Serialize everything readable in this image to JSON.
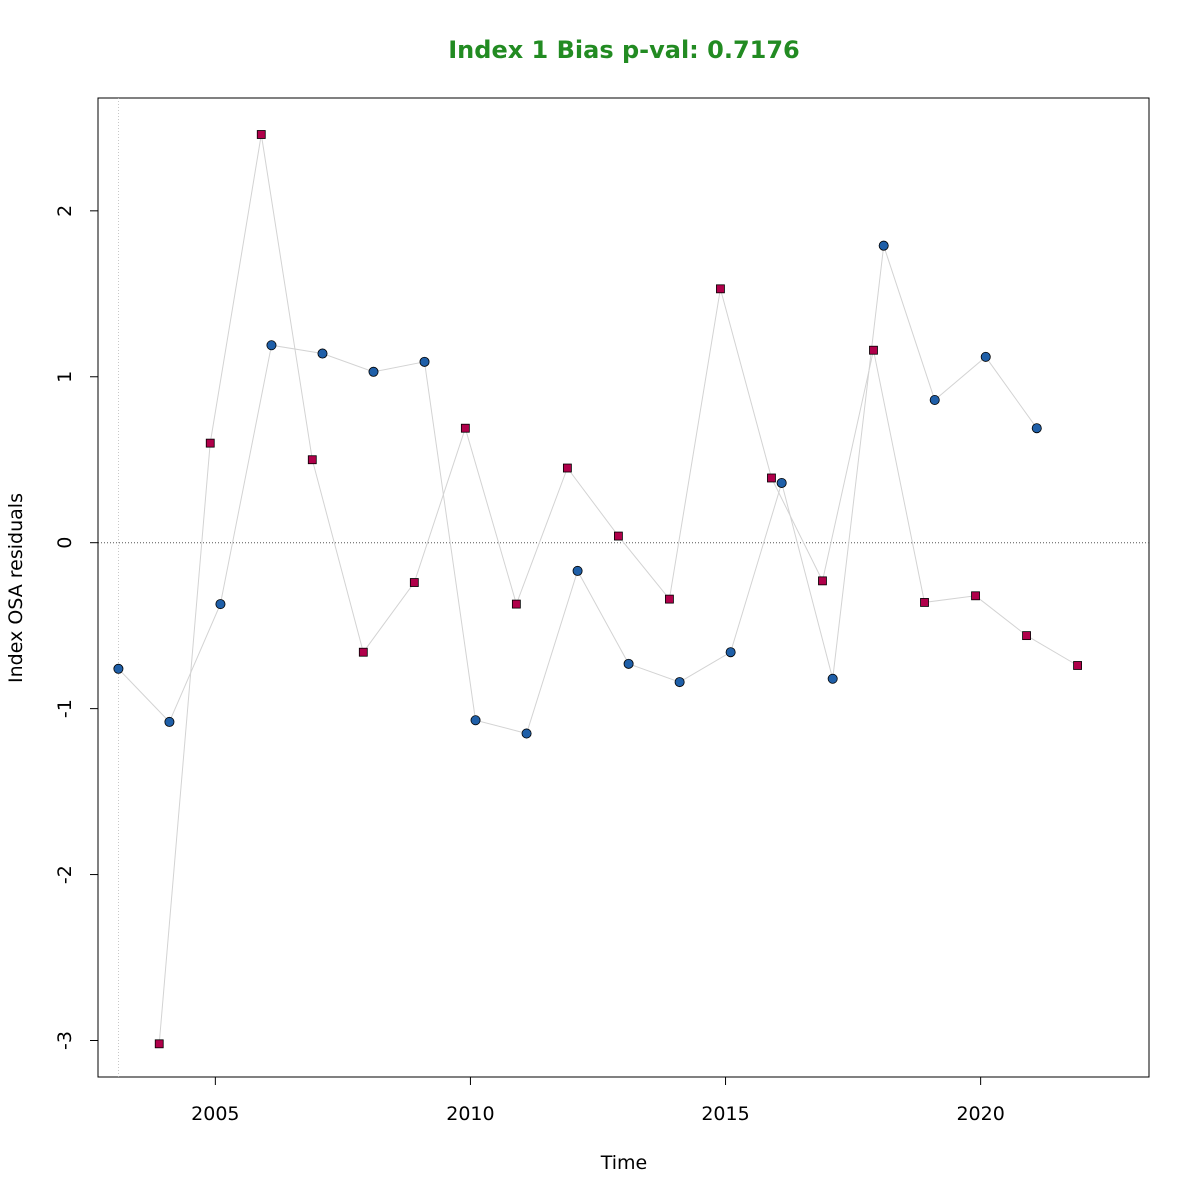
{
  "chart_data": {
    "type": "scatter",
    "title": "Index 1 Bias p-val: 0.7176",
    "title_color": "#228B22",
    "xlabel": "Time",
    "ylabel": "Index OSA residuals",
    "xlim": [
      2002.7,
      2023.3
    ],
    "ylim": [
      -3.22,
      2.68
    ],
    "x_ticks": [
      2005,
      2010,
      2015,
      2020
    ],
    "x_tick_labels": [
      "2005",
      "2010",
      "2015",
      "2020"
    ],
    "y_ticks": [
      -3,
      -2,
      -1,
      0,
      1,
      2
    ],
    "y_tick_labels": [
      "-3",
      "-2",
      "-1",
      "0",
      "1",
      "2"
    ],
    "reference_line_y": 0,
    "reference_line_x": 2003.1,
    "grid": false,
    "legend": "none",
    "line_color": "#d3d3d3",
    "series": [
      {
        "marker": "circle",
        "color": "#1f5fa8",
        "x": [
          2003.1,
          2004.1,
          2005.1,
          2006.1,
          2007.1,
          2008.1,
          2009.1,
          2010.1,
          2011.1,
          2012.1,
          2013.1,
          2014.1,
          2015.1,
          2016.1,
          2017.1,
          2018.1,
          2019.1,
          2020.1,
          2021.1
        ],
        "y": [
          -0.76,
          -1.08,
          -0.37,
          1.19,
          1.14,
          1.03,
          1.09,
          -1.07,
          -1.15,
          -0.17,
          -0.73,
          -0.84,
          -0.66,
          0.36,
          -0.82,
          1.79,
          0.86,
          1.12,
          0.69
        ]
      },
      {
        "marker": "square",
        "color": "#b0004a",
        "x": [
          2003.9,
          2004.9,
          2005.9,
          2006.9,
          2007.9,
          2008.9,
          2009.9,
          2010.9,
          2011.9,
          2012.9,
          2013.9,
          2014.9,
          2015.9,
          2016.9,
          2017.9,
          2018.9,
          2019.9,
          2020.9,
          2021.9
        ],
        "y": [
          -3.02,
          0.6,
          2.46,
          0.5,
          -0.66,
          -0.24,
          0.69,
          -0.37,
          0.45,
          0.04,
          -0.34,
          1.53,
          0.39,
          -0.23,
          1.16,
          -0.36,
          -0.32,
          -0.56,
          -0.74
        ]
      }
    ]
  }
}
